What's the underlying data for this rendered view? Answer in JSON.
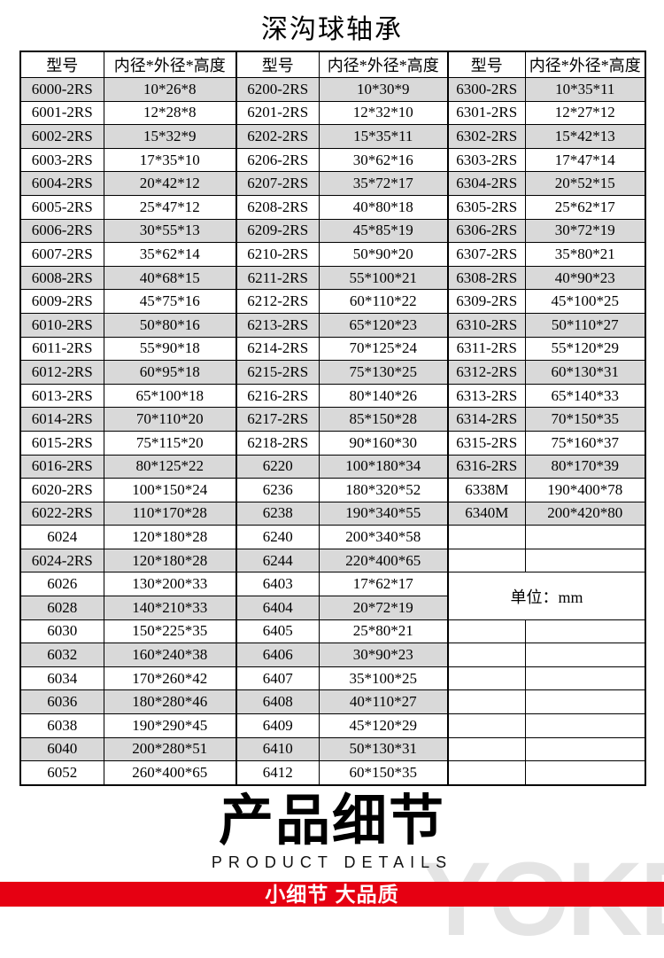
{
  "page": {
    "title": "深沟球轴承"
  },
  "table": {
    "headers": [
      "型号",
      "内径*外径*高度",
      "型号",
      "内径*外径*高度",
      "型号",
      "内径*外径*高度"
    ],
    "rows": [
      [
        "6000-2RS",
        "10*26*8",
        "6200-2RS",
        "10*30*9",
        "6300-2RS",
        "10*35*11"
      ],
      [
        "6001-2RS",
        "12*28*8",
        "6201-2RS",
        "12*32*10",
        "6301-2RS",
        "12*27*12"
      ],
      [
        "6002-2RS",
        "15*32*9",
        "6202-2RS",
        "15*35*11",
        "6302-2RS",
        "15*42*13"
      ],
      [
        "6003-2RS",
        "17*35*10",
        "6206-2RS",
        "30*62*16",
        "6303-2RS",
        "17*47*14"
      ],
      [
        "6004-2RS",
        "20*42*12",
        "6207-2RS",
        "35*72*17",
        "6304-2RS",
        "20*52*15"
      ],
      [
        "6005-2RS",
        "25*47*12",
        "6208-2RS",
        "40*80*18",
        "6305-2RS",
        "25*62*17"
      ],
      [
        "6006-2RS",
        "30*55*13",
        "6209-2RS",
        "45*85*19",
        "6306-2RS",
        "30*72*19"
      ],
      [
        "6007-2RS",
        "35*62*14",
        "6210-2RS",
        "50*90*20",
        "6307-2RS",
        "35*80*21"
      ],
      [
        "6008-2RS",
        "40*68*15",
        "6211-2RS",
        "55*100*21",
        "6308-2RS",
        "40*90*23"
      ],
      [
        "6009-2RS",
        "45*75*16",
        "6212-2RS",
        "60*110*22",
        "6309-2RS",
        "45*100*25"
      ],
      [
        "6010-2RS",
        "50*80*16",
        "6213-2RS",
        "65*120*23",
        "6310-2RS",
        "50*110*27"
      ],
      [
        "6011-2RS",
        "55*90*18",
        "6214-2RS",
        "70*125*24",
        "6311-2RS",
        "55*120*29"
      ],
      [
        "6012-2RS",
        "60*95*18",
        "6215-2RS",
        "75*130*25",
        "6312-2RS",
        "60*130*31"
      ],
      [
        "6013-2RS",
        "65*100*18",
        "6216-2RS",
        "80*140*26",
        "6313-2RS",
        "65*140*33"
      ],
      [
        "6014-2RS",
        "70*110*20",
        "6217-2RS",
        "85*150*28",
        "6314-2RS",
        "70*150*35"
      ],
      [
        "6015-2RS",
        "75*115*20",
        "6218-2RS",
        "90*160*30",
        "6315-2RS",
        "75*160*37"
      ],
      [
        "6016-2RS",
        "80*125*22",
        "6220",
        "100*180*34",
        "6316-2RS",
        "80*170*39"
      ],
      [
        "6020-2RS",
        "100*150*24",
        "6236",
        "180*320*52",
        "6338M",
        "190*400*78"
      ],
      [
        "6022-2RS",
        "110*170*28",
        "6238",
        "190*340*55",
        "6340M",
        "200*420*80"
      ],
      [
        "6024",
        "120*180*28",
        "6240",
        "200*340*58",
        "",
        ""
      ],
      [
        "6024-2RS",
        "120*180*28",
        "6244",
        "220*400*65",
        "",
        ""
      ],
      [
        "6026",
        "130*200*33",
        "6403",
        "17*62*17",
        "",
        ""
      ],
      [
        "6028",
        "140*210*33",
        "6404",
        "20*72*19",
        "",
        ""
      ],
      [
        "6030",
        "150*225*35",
        "6405",
        "25*80*21",
        "",
        ""
      ],
      [
        "6032",
        "160*240*38",
        "6406",
        "30*90*23",
        "",
        ""
      ],
      [
        "6034",
        "170*260*42",
        "6407",
        "35*100*25",
        "",
        ""
      ],
      [
        "6036",
        "180*280*46",
        "6408",
        "40*110*27",
        "",
        ""
      ],
      [
        "6038",
        "190*290*45",
        "6409",
        "45*120*29",
        "",
        ""
      ],
      [
        "6040",
        "200*280*51",
        "6410",
        "50*130*31",
        "",
        ""
      ],
      [
        "6052",
        "260*400*65",
        "6412",
        "60*150*35",
        "",
        ""
      ]
    ],
    "unit_cell": {
      "label": "单位：mm",
      "row_index": 21,
      "row_span": 2,
      "col_start": 4,
      "col_span": 2
    }
  },
  "footer": {
    "heading": "产品细节",
    "subheading": "PRODUCT DETAILS",
    "banner": "小细节 大品质",
    "watermark": "YOKE"
  },
  "colors": {
    "banner_red": "#e60012",
    "stripe_gray": "#d9d9d9",
    "watermark_gray": "#e4e4e4"
  }
}
